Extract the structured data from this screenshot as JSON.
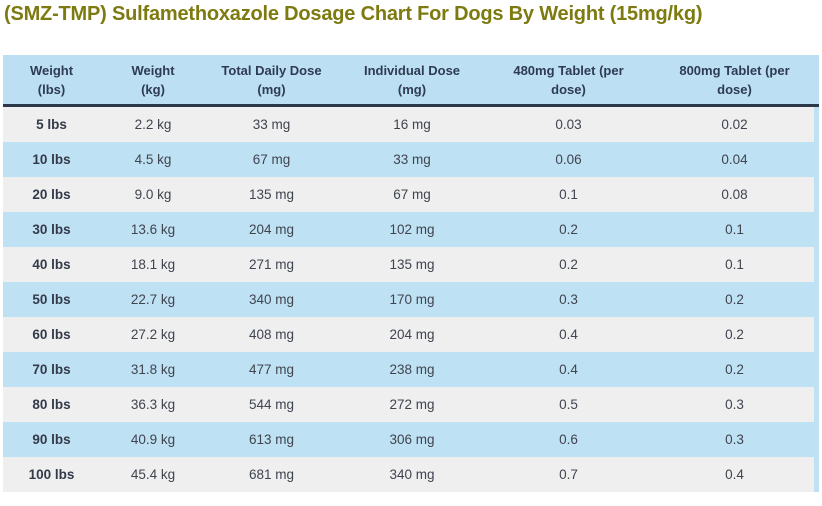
{
  "title": "(SMZ-TMP) Sulfamethoxazole Dosage Chart For Dogs By Weight (15mg/kg)",
  "colors": {
    "title_text": "#7d7a0f",
    "header_bg": "#bcdff3",
    "header_text": "#2e3b52",
    "header_border": "#2c3748",
    "row_grey": "#efeff0",
    "row_blue": "#bfe1f4",
    "body_text": "#3f444e",
    "first_col_text": "#333a49",
    "page_bg": "#ffffff",
    "scrollbar": "#bfe1f4"
  },
  "chart_data": {
    "type": "table",
    "title": "(SMZ-TMP) Sulfamethoxazole Dosage Chart For Dogs By Weight (15mg/kg)",
    "columns": [
      "Weight (lbs)",
      "Weight (kg)",
      "Total Daily Dose (mg)",
      "Individual Dose (mg)",
      "480mg Tablet (per dose)",
      "800mg Tablet (per dose)"
    ],
    "column_lines": [
      [
        "Weight",
        "(lbs)"
      ],
      [
        "Weight",
        "(kg)"
      ],
      [
        "Total Daily Dose",
        "(mg)"
      ],
      [
        "Individual Dose",
        "(mg)"
      ],
      [
        "480mg Tablet (per",
        "dose)"
      ],
      [
        "800mg Tablet (per",
        "dose)"
      ]
    ],
    "rows": [
      [
        "5 lbs",
        "2.2 kg",
        "33 mg",
        "16 mg",
        "0.03",
        "0.02"
      ],
      [
        "10 lbs",
        "4.5 kg",
        "67 mg",
        "33 mg",
        "0.06",
        "0.04"
      ],
      [
        "20 lbs",
        "9.0 kg",
        "135 mg",
        "67 mg",
        "0.1",
        "0.08"
      ],
      [
        "30 lbs",
        "13.6 kg",
        "204 mg",
        "102 mg",
        "0.2",
        "0.1"
      ],
      [
        "40 lbs",
        "18.1 kg",
        "271 mg",
        "135 mg",
        "0.2",
        "0.1"
      ],
      [
        "50 lbs",
        "22.7 kg",
        "340 mg",
        "170 mg",
        "0.3",
        "0.2"
      ],
      [
        "60 lbs",
        "27.2 kg",
        "408 mg",
        "204 mg",
        "0.4",
        "0.2"
      ],
      [
        "70 lbs",
        "31.8 kg",
        "477 mg",
        "238 mg",
        "0.4",
        "0.2"
      ],
      [
        "80 lbs",
        "36.3 kg",
        "544 mg",
        "272 mg",
        "0.5",
        "0.3"
      ],
      [
        "90 lbs",
        "40.9 kg",
        "613 mg",
        "306 mg",
        "0.6",
        "0.3"
      ],
      [
        "100 lbs",
        "45.4 kg",
        "681 mg",
        "340 mg",
        "0.7",
        "0.4"
      ]
    ],
    "row_striping": "odd rows grey, even rows light blue",
    "legend_position": "none",
    "grid": false
  }
}
